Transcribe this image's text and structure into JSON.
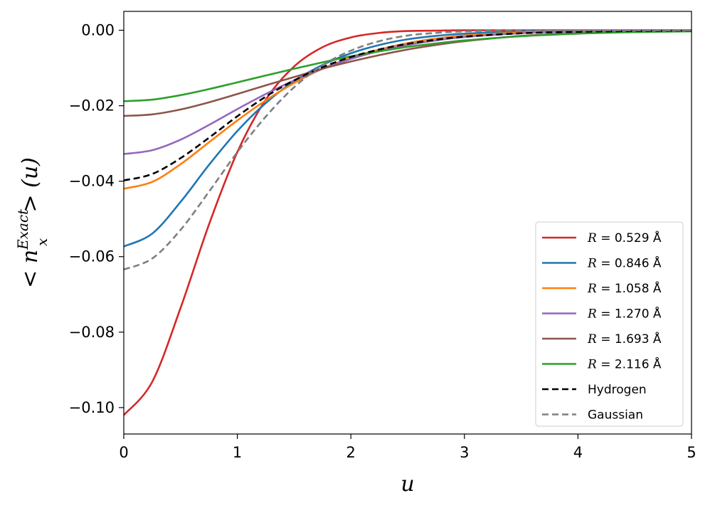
{
  "chart_data": {
    "type": "line",
    "xlabel": "u",
    "ylabel": {
      "prefix": "< n",
      "superscript": "Exact",
      "subscript": "x",
      "suffix": "> (u)"
    },
    "xlim": [
      0,
      5
    ],
    "ylim": [
      -0.107,
      0.005
    ],
    "xticks": [
      0,
      1,
      2,
      3,
      4,
      5
    ],
    "xtick_labels": [
      "0",
      "1",
      "2",
      "3",
      "4",
      "5"
    ],
    "yticks": [
      0.0,
      -0.02,
      -0.04,
      -0.06,
      -0.08,
      -0.1
    ],
    "ytick_labels": [
      "0.00",
      "−0.02",
      "−0.04",
      "−0.06",
      "−0.08",
      "−0.10"
    ],
    "grid": false,
    "legend_position": "lower-right",
    "x": [
      0,
      0.25,
      0.5,
      0.75,
      1.0,
      1.25,
      1.5,
      1.75,
      2.0,
      2.25,
      2.5,
      2.75,
      3.0,
      3.5,
      4.0,
      4.5,
      5.0
    ],
    "series": [
      {
        "name": "R = 0.529 Å",
        "var": "R",
        "value": "0.529",
        "unit": "Å",
        "color": "#d62728",
        "dash": "solid",
        "values": [
          -0.102,
          -0.0932,
          -0.0736,
          -0.0515,
          -0.0323,
          -0.0184,
          -0.0096,
          -0.0045,
          -0.0019,
          -0.0007,
          -0.0002,
          -0.0001,
          0.0,
          0.0,
          0.0,
          0.0,
          0.0
        ]
      },
      {
        "name": "R = 0.846 Å",
        "var": "R",
        "value": "0.846",
        "unit": "Å",
        "color": "#1f77b4",
        "dash": "solid",
        "values": [
          -0.0573,
          -0.0539,
          -0.0455,
          -0.0357,
          -0.0267,
          -0.0193,
          -0.0135,
          -0.0092,
          -0.0061,
          -0.0039,
          -0.0024,
          -0.0015,
          -0.0009,
          -0.0003,
          -0.0001,
          0.0,
          0.0
        ]
      },
      {
        "name": "R = 1.058 Å",
        "var": "R",
        "value": "1.058",
        "unit": "Å",
        "color": "#ff7f0e",
        "dash": "solid",
        "values": [
          -0.042,
          -0.0402,
          -0.0355,
          -0.0297,
          -0.0239,
          -0.0186,
          -0.014,
          -0.0102,
          -0.0073,
          -0.0051,
          -0.0034,
          -0.0022,
          -0.0014,
          -0.0006,
          -0.0002,
          -0.0001,
          0.0
        ]
      },
      {
        "name": "R = 1.270 Å",
        "var": "R",
        "value": "1.270",
        "unit": "Å",
        "color": "#9467bd",
        "dash": "solid",
        "values": [
          -0.0328,
          -0.0318,
          -0.029,
          -0.0251,
          -0.0209,
          -0.0169,
          -0.0133,
          -0.0102,
          -0.0076,
          -0.0055,
          -0.0039,
          -0.0027,
          -0.0018,
          -0.0008,
          -0.0003,
          -0.0001,
          0.0
        ]
      },
      {
        "name": "R = 1.693 Å",
        "var": "R",
        "value": "1.693",
        "unit": "Å",
        "color": "#8c564b",
        "dash": "solid",
        "values": [
          -0.0227,
          -0.0223,
          -0.021,
          -0.0191,
          -0.0169,
          -0.0146,
          -0.0124,
          -0.0102,
          -0.0083,
          -0.0066,
          -0.0051,
          -0.0039,
          -0.0029,
          -0.0015,
          -0.0008,
          -0.0004,
          -0.0002
        ]
      },
      {
        "name": "R = 2.116 Å",
        "var": "R",
        "value": "2.116",
        "unit": "Å",
        "color": "#2ca02c",
        "dash": "solid",
        "values": [
          -0.0188,
          -0.0184,
          -0.0172,
          -0.0156,
          -0.0138,
          -0.012,
          -0.0102,
          -0.0085,
          -0.0069,
          -0.0056,
          -0.0044,
          -0.0035,
          -0.0027,
          -0.0016,
          -0.0009,
          -0.0005,
          -0.0003
        ]
      },
      {
        "name": "Hydrogen",
        "color": "#000000",
        "dash": "dashed",
        "values": [
          -0.0398,
          -0.0381,
          -0.0339,
          -0.0285,
          -0.0228,
          -0.0176,
          -0.0133,
          -0.0098,
          -0.0071,
          -0.0051,
          -0.0036,
          -0.0025,
          -0.0017,
          -0.0008,
          -0.0004,
          -0.0002,
          -0.0001
        ]
      },
      {
        "name": "Gaussian",
        "color": "#7f7f7f",
        "dash": "dashed",
        "values": [
          -0.0634,
          -0.0605,
          -0.0529,
          -0.0428,
          -0.0323,
          -0.0229,
          -0.0151,
          -0.0093,
          -0.0054,
          -0.0029,
          -0.0014,
          -0.0007,
          -0.0003,
          0.0,
          0.0,
          0.0,
          0.0
        ]
      }
    ]
  }
}
